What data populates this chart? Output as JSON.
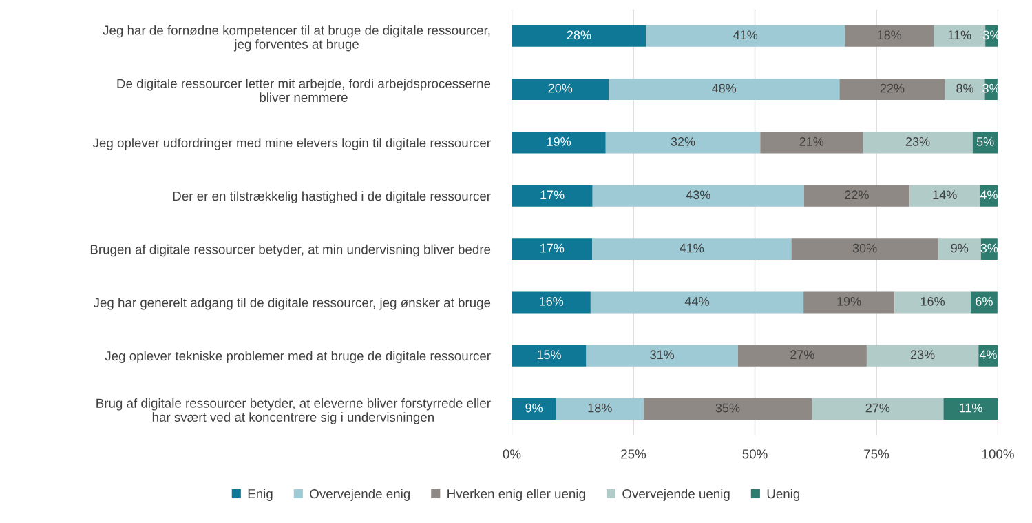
{
  "chart_data": {
    "type": "bar",
    "orientation": "horizontal",
    "stacked": true,
    "categories": [
      "Jeg har de fornødne kompetencer til at bruge de digitale ressourcer,\njeg forventes at bruge",
      "De digitale ressourcer letter mit arbejde, fordi arbejdsprocesserne\nbliver nemmere",
      "Jeg oplever udfordringer med mine elevers login til digitale ressourcer",
      "Der er en tilstrækkelig hastighed i de digitale ressourcer",
      "Brugen af digitale ressourcer betyder, at min undervisning bliver bedre",
      "Jeg har generelt adgang til de digitale ressourcer, jeg ønsker at bruge",
      "Jeg oplever tekniske problemer med at bruge de digitale ressourcer",
      "Brug af digitale ressourcer betyder, at eleverne bliver forstyrrede eller\nhar svært ved at koncentrere sig i undervisningen"
    ],
    "series": [
      {
        "name": "Enig",
        "color": "#0f7896",
        "values": [
          27.6,
          19.9,
          19.3,
          16.6,
          16.5,
          16.2,
          15.3,
          9.1
        ],
        "value_labels": [
          "28%",
          "20%",
          "19%",
          "17%",
          "17%",
          "16%",
          "15%",
          "9%"
        ]
      },
      {
        "name": "Overvejende enig",
        "color": "#9ecad5",
        "values": [
          40.9,
          47.5,
          31.8,
          43.5,
          41.0,
          43.8,
          31.2,
          18.0
        ],
        "value_labels": [
          "41%",
          "48%",
          "32%",
          "43%",
          "41%",
          "44%",
          "31%",
          "18%"
        ]
      },
      {
        "name": "Hverken enig eller uenig",
        "color": "#8e8984",
        "values": [
          18.3,
          21.7,
          21.1,
          21.7,
          30.2,
          18.7,
          26.5,
          34.6
        ],
        "value_labels": [
          "18%",
          "22%",
          "21%",
          "22%",
          "30%",
          "19%",
          "27%",
          "35%"
        ]
      },
      {
        "name": "Overvejende uenig",
        "color": "#b1ccc8",
        "values": [
          10.6,
          8.2,
          22.6,
          14.5,
          8.8,
          15.7,
          23.0,
          27.1
        ],
        "value_labels": [
          "11%",
          "8%",
          "23%",
          "14%",
          "9%",
          "16%",
          "23%",
          "27%"
        ]
      },
      {
        "name": "Uenig",
        "color": "#2e7b6f",
        "values": [
          2.6,
          2.6,
          5.2,
          3.7,
          3.4,
          5.5,
          4.0,
          11.2
        ],
        "value_labels": [
          "3%",
          "3%",
          "5%",
          "4%",
          "3%",
          "6%",
          "4%",
          "11%"
        ]
      }
    ],
    "xlim": [
      0,
      100
    ],
    "xticks": [
      {
        "value": 0,
        "label": "0%"
      },
      {
        "value": 25,
        "label": "25%"
      },
      {
        "value": 50,
        "label": "50%"
      },
      {
        "value": 75,
        "label": "75%"
      },
      {
        "value": 100,
        "label": "100%"
      }
    ],
    "grid": "x",
    "legend": "bottom"
  }
}
